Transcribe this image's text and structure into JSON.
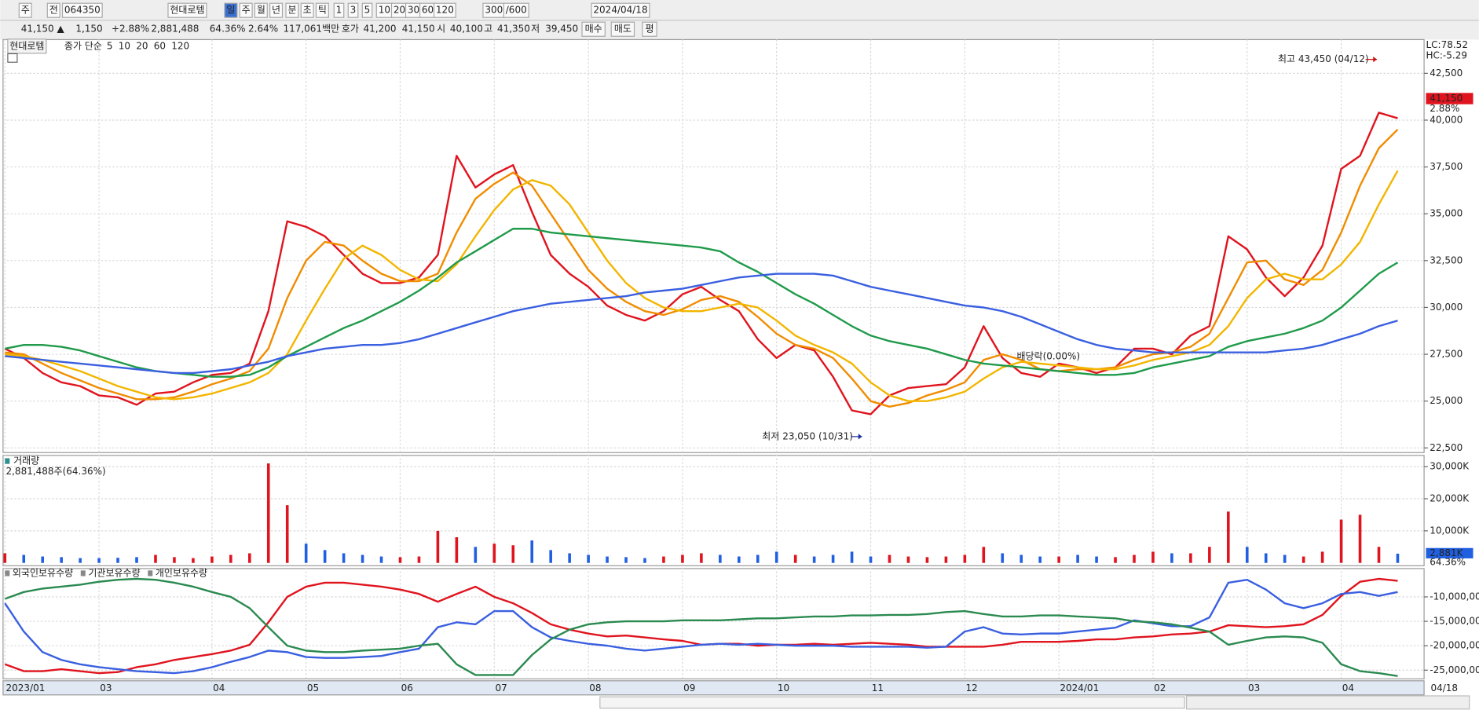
{
  "toolbar": {
    "row1": [
      "주",
      "전",
      "064350",
      "현대로템",
      "일",
      "주",
      "월",
      "년",
      "분",
      "초",
      "틱",
      "1",
      "3",
      "5",
      "10",
      "20",
      "30",
      "60",
      "120",
      "300",
      "/600",
      "2024/04/18"
    ],
    "row2": [
      {
        "text": "41,150 ▲",
        "color": "#d01010"
      },
      {
        "text": "1,150",
        "color": "#d01010"
      },
      {
        "text": "+2.88%",
        "color": "#d01010"
      },
      {
        "text": "2,881,488",
        "color": "#222222"
      },
      {
        "text": "64.36%",
        "color": "#222222"
      },
      {
        "text": "2.64%",
        "color": "#222222"
      },
      {
        "text": "117,061백만",
        "color": "#222222"
      },
      {
        "text": "호가",
        "color": "#222222"
      },
      {
        "text": "41,200",
        "color": "#d01010"
      },
      {
        "text": "41,150",
        "color": "#d01010"
      },
      {
        "text": "시",
        "color": "#222222"
      },
      {
        "text": "40,100",
        "color": "#d01010"
      },
      {
        "text": "고",
        "color": "#222222"
      },
      {
        "text": "41,350",
        "color": "#d01010"
      },
      {
        "text": "저",
        "color": "#222222"
      },
      {
        "text": "39,450",
        "color": "#d01010"
      },
      {
        "text": "매수",
        "color": "#d01010"
      },
      {
        "text": "매도",
        "color": "#1a3fb0"
      },
      {
        "text": "평",
        "color": "#222222"
      }
    ]
  },
  "chart_data": [
    {
      "type": "line",
      "title": "현대로템",
      "legend_prefix": "종가 단순",
      "legend_prefix_color": "#d01010",
      "ylim": [
        22250,
        44300
      ],
      "yticks": [
        {
          "value": 22500,
          "label": "22,500"
        },
        {
          "value": 25000,
          "label": "25,000"
        },
        {
          "value": 27500,
          "label": "27,500"
        },
        {
          "value": 30000,
          "label": "30,000"
        },
        {
          "value": 32500,
          "label": "32,500"
        },
        {
          "value": 35000,
          "label": "35,000"
        },
        {
          "value": 37500,
          "label": "37,500"
        },
        {
          "value": 40000,
          "label": "40,000"
        },
        {
          "value": 42500,
          "label": "42,500"
        }
      ],
      "grid": true,
      "series": [
        {
          "name": "5",
          "color": "#e0141e",
          "values": [
            27800,
            27300,
            26500,
            26000,
            25800,
            25300,
            25200,
            24800,
            25400,
            25500,
            26000,
            26400,
            26500,
            27000,
            29800,
            34600,
            34300,
            33800,
            32800,
            31800,
            31300,
            31300,
            31600,
            32800,
            38100,
            36400,
            37100,
            37600,
            35100,
            32800,
            31800,
            31100,
            30100,
            29600,
            29300,
            29800,
            30700,
            31100,
            30400,
            29800,
            28300,
            27300,
            28000,
            27700,
            26300,
            24500,
            24300,
            25300,
            25700,
            25800,
            25900,
            26800,
            29000,
            27300,
            26500,
            26300,
            27000,
            26800,
            26500,
            26800,
            27800,
            27800,
            27500,
            28500,
            29000,
            33800,
            33100,
            31600,
            30600,
            31600,
            33300,
            37400,
            38100,
            40400,
            40100
          ]
        },
        {
          "name": "10",
          "color": "#f08c00",
          "values": [
            27600,
            27500,
            27000,
            26500,
            26100,
            25700,
            25400,
            25100,
            25100,
            25200,
            25500,
            25900,
            26200,
            26600,
            27800,
            30500,
            32500,
            33500,
            33300,
            32500,
            31800,
            31400,
            31400,
            31800,
            34000,
            35800,
            36600,
            37200,
            36500,
            35000,
            33500,
            32000,
            31000,
            30300,
            29800,
            29600,
            29900,
            30400,
            30600,
            30300,
            29500,
            28600,
            28000,
            27800,
            27300,
            26200,
            25000,
            24700,
            24900,
            25300,
            25600,
            26000,
            27200,
            27500,
            27200,
            26700,
            26600,
            26700,
            26700,
            26800,
            27200,
            27500,
            27600,
            27900,
            28600,
            30500,
            32400,
            32500,
            31500,
            31200,
            32000,
            34000,
            36500,
            38500,
            39500
          ]
        },
        {
          "name": "20",
          "color": "#f2b600",
          "values": [
            27500,
            27400,
            27200,
            26900,
            26600,
            26200,
            25800,
            25500,
            25200,
            25100,
            25200,
            25400,
            25700,
            26000,
            26500,
            27500,
            29300,
            31000,
            32600,
            33300,
            32800,
            32000,
            31500,
            31400,
            32300,
            33800,
            35200,
            36300,
            36800,
            36500,
            35500,
            34000,
            32500,
            31300,
            30500,
            30000,
            29800,
            29800,
            30000,
            30200,
            30000,
            29300,
            28500,
            28000,
            27600,
            27000,
            26000,
            25300,
            25000,
            25000,
            25200,
            25500,
            26200,
            26800,
            27100,
            27000,
            26900,
            26800,
            26700,
            26700,
            26900,
            27200,
            27400,
            27600,
            28000,
            29000,
            30500,
            31500,
            31800,
            31500,
            31500,
            32300,
            33500,
            35500,
            37300
          ]
        },
        {
          "name": "60",
          "color": "#1f9a4a",
          "values": [
            27800,
            28000,
            28000,
            27900,
            27700,
            27400,
            27100,
            26800,
            26600,
            26500,
            26400,
            26300,
            26300,
            26400,
            26800,
            27400,
            27900,
            28400,
            28900,
            29300,
            29800,
            30300,
            30900,
            31600,
            32400,
            33000,
            33600,
            34200,
            34200,
            34000,
            33900,
            33800,
            33700,
            33600,
            33500,
            33400,
            33300,
            33200,
            33000,
            32400,
            31900,
            31300,
            30700,
            30200,
            29600,
            29000,
            28500,
            28200,
            28000,
            27800,
            27500,
            27200,
            27000,
            26900,
            26800,
            26700,
            26600,
            26500,
            26400,
            26400,
            26500,
            26800,
            27000,
            27200,
            27400,
            27900,
            28200,
            28400,
            28600,
            28900,
            29300,
            30000,
            30900,
            31800,
            32400
          ]
        },
        {
          "name": "120",
          "color": "#3a5fe0",
          "values": [
            27400,
            27300,
            27200,
            27100,
            27000,
            26900,
            26800,
            26700,
            26600,
            26500,
            26500,
            26600,
            26700,
            26900,
            27100,
            27400,
            27600,
            27800,
            27900,
            28000,
            28000,
            28100,
            28300,
            28600,
            28900,
            29200,
            29500,
            29800,
            30000,
            30200,
            30300,
            30400,
            30500,
            30600,
            30800,
            30900,
            31000,
            31200,
            31400,
            31600,
            31700,
            31800,
            31800,
            31800,
            31700,
            31400,
            31100,
            30900,
            30700,
            30500,
            30300,
            30100,
            30000,
            29800,
            29500,
            29100,
            28700,
            28300,
            28000,
            27800,
            27700,
            27600,
            27600,
            27600,
            27600,
            27600,
            27600,
            27600,
            27700,
            27800,
            28000,
            28300,
            28600,
            29000,
            29300
          ]
        }
      ],
      "last_price": {
        "value": 41150,
        "label": "41,150"
      },
      "change_label": "2.88%",
      "lc_label": "LC:78.52",
      "hc_label": "HC:-5.29",
      "annotations": [
        {
          "text": "최고 43,450 (04/12)",
          "color": "#d01010"
        },
        {
          "text": "최저 23,050 (10/31)",
          "color": "#1a2fa0"
        },
        {
          "text": "배당락(0.00%)",
          "color": "#707070"
        }
      ]
    },
    {
      "type": "bar",
      "title": "거래량",
      "subtitle": "2,881,488주(64.36%)",
      "up_color": "#e0141e",
      "down_color": "#2060e0",
      "ylim": [
        0,
        33500
      ],
      "yticks": [
        {
          "value": 10000,
          "label": "10,000K"
        },
        {
          "value": 20000,
          "label": "20,000K"
        },
        {
          "value": 30000,
          "label": "30,000K"
        }
      ],
      "values": [
        3000,
        2500,
        2000,
        1800,
        1500,
        1500,
        1600,
        1800,
        2500,
        1800,
        1500,
        2000,
        2500,
        3000,
        31000,
        18000,
        6000,
        4000,
        3000,
        2500,
        2000,
        1800,
        2000,
        10000,
        8000,
        5000,
        6000,
        5500,
        7000,
        4000,
        3000,
        2500,
        2000,
        1800,
        1500,
        2000,
        2500,
        3000,
        2500,
        2000,
        2500,
        3500,
        2500,
        2000,
        2500,
        3500,
        2000,
        2500,
        2000,
        1800,
        2000,
        2500,
        5000,
        3000,
        2500,
        2000,
        2000,
        2500,
        2000,
        1800,
        2500,
        3500,
        3000,
        3000,
        5000,
        16000,
        5000,
        3000,
        2500,
        2000,
        3500,
        13500,
        15000,
        5000,
        2881
      ],
      "last_value": {
        "value": 2881,
        "label": "2,881K"
      },
      "ratio_label": "64.36%"
    },
    {
      "type": "line",
      "categories": [
        "2023/01",
        null,
        null,
        null,
        null,
        "03",
        null,
        null,
        null,
        null,
        null,
        "04",
        null,
        null,
        null,
        null,
        "05",
        null,
        null,
        null,
        null,
        "06",
        null,
        null,
        null,
        null,
        "07",
        null,
        null,
        null,
        null,
        "08",
        null,
        null,
        null,
        null,
        "09",
        null,
        null,
        null,
        null,
        "10",
        null,
        null,
        null,
        null,
        "11",
        null,
        null,
        null,
        null,
        "12",
        null,
        null,
        null,
        null,
        "2024/01",
        null,
        null,
        null,
        null,
        "02",
        null,
        null,
        null,
        null,
        "03",
        null,
        null,
        null,
        null,
        "04",
        null,
        null,
        null
      ],
      "end_label": "04/18",
      "ylim": [
        -26400000,
        -4200000
      ],
      "yticks": [
        {
          "value": -25000000,
          "label": "-25,000,000"
        },
        {
          "value": -20000000,
          "label": "-20,000,000"
        },
        {
          "value": -15000000,
          "label": "-15,000,000"
        },
        {
          "value": -10000000,
          "label": "-10,000,000"
        }
      ],
      "series": [
        {
          "name": "외국인보유수량",
          "color": "#e0141e",
          "values": [
            -23800000,
            -25200000,
            -25200000,
            -24800000,
            -25200000,
            -25600000,
            -25400000,
            -24400000,
            -23800000,
            -22900000,
            -22300000,
            -21700000,
            -21000000,
            -19800000,
            -15200000,
            -10000000,
            -7900000,
            -7100000,
            -7100000,
            -7500000,
            -7900000,
            -8500000,
            -9400000,
            -11000000,
            -9400000,
            -7900000,
            -10000000,
            -11300000,
            -13300000,
            -15600000,
            -16700000,
            -17500000,
            -18100000,
            -17900000,
            -18300000,
            -18700000,
            -19000000,
            -19800000,
            -19600000,
            -19600000,
            -20000000,
            -19800000,
            -19800000,
            -19600000,
            -19800000,
            -19600000,
            -19400000,
            -19600000,
            -19800000,
            -20200000,
            -20200000,
            -20200000,
            -20200000,
            -19800000,
            -19200000,
            -19200000,
            -19200000,
            -19000000,
            -18700000,
            -18700000,
            -18300000,
            -18100000,
            -17700000,
            -17500000,
            -17100000,
            -15800000,
            -16000000,
            -16200000,
            -16000000,
            -15600000,
            -13700000,
            -9800000,
            -6900000,
            -6300000,
            -6700000
          ]
        },
        {
          "name": "기관보유수량",
          "color": "#3a5fe0",
          "values": [
            -11300000,
            -17100000,
            -21300000,
            -22900000,
            -23800000,
            -24400000,
            -24800000,
            -25200000,
            -25400000,
            -25600000,
            -25200000,
            -24400000,
            -23300000,
            -22300000,
            -21000000,
            -21300000,
            -22300000,
            -22500000,
            -22500000,
            -22300000,
            -22100000,
            -21300000,
            -20600000,
            -16200000,
            -15200000,
            -15600000,
            -12900000,
            -12900000,
            -16200000,
            -18300000,
            -19000000,
            -19600000,
            -20000000,
            -20600000,
            -21000000,
            -20600000,
            -20200000,
            -19800000,
            -19600000,
            -19800000,
            -19600000,
            -19800000,
            -20000000,
            -20000000,
            -20000000,
            -20200000,
            -20200000,
            -20200000,
            -20200000,
            -20400000,
            -20200000,
            -17100000,
            -16200000,
            -17500000,
            -17700000,
            -17500000,
            -17500000,
            -17100000,
            -16700000,
            -16300000,
            -14800000,
            -15400000,
            -16000000,
            -16000000,
            -14200000,
            -7100000,
            -6500000,
            -8500000,
            -11300000,
            -12300000,
            -11300000,
            -9400000,
            -9000000,
            -9800000,
            -9000000
          ]
        },
        {
          "name": "개인보유수량",
          "color": "#2a8a50",
          "values": [
            -10400000,
            -9000000,
            -8300000,
            -7900000,
            -7500000,
            -6900000,
            -6500000,
            -6300000,
            -6500000,
            -7100000,
            -7900000,
            -9000000,
            -10000000,
            -12300000,
            -16200000,
            -20000000,
            -21000000,
            -21300000,
            -21300000,
            -21000000,
            -20800000,
            -20600000,
            -20000000,
            -19600000,
            -23800000,
            -26000000,
            -26000000,
            -26000000,
            -21900000,
            -18700000,
            -16700000,
            -15600000,
            -15200000,
            -15000000,
            -15000000,
            -15000000,
            -14800000,
            -14800000,
            -14800000,
            -14600000,
            -14400000,
            -14400000,
            -14200000,
            -14000000,
            -14000000,
            -13800000,
            -13800000,
            -13700000,
            -13700000,
            -13500000,
            -13100000,
            -12900000,
            -13500000,
            -14000000,
            -14000000,
            -13800000,
            -13800000,
            -14000000,
            -14200000,
            -14400000,
            -15000000,
            -15200000,
            -15600000,
            -16300000,
            -17100000,
            -19800000,
            -19000000,
            -18300000,
            -18100000,
            -18300000,
            -19400000,
            -23800000,
            -25200000,
            -25600000,
            -26200000
          ]
        }
      ]
    }
  ]
}
